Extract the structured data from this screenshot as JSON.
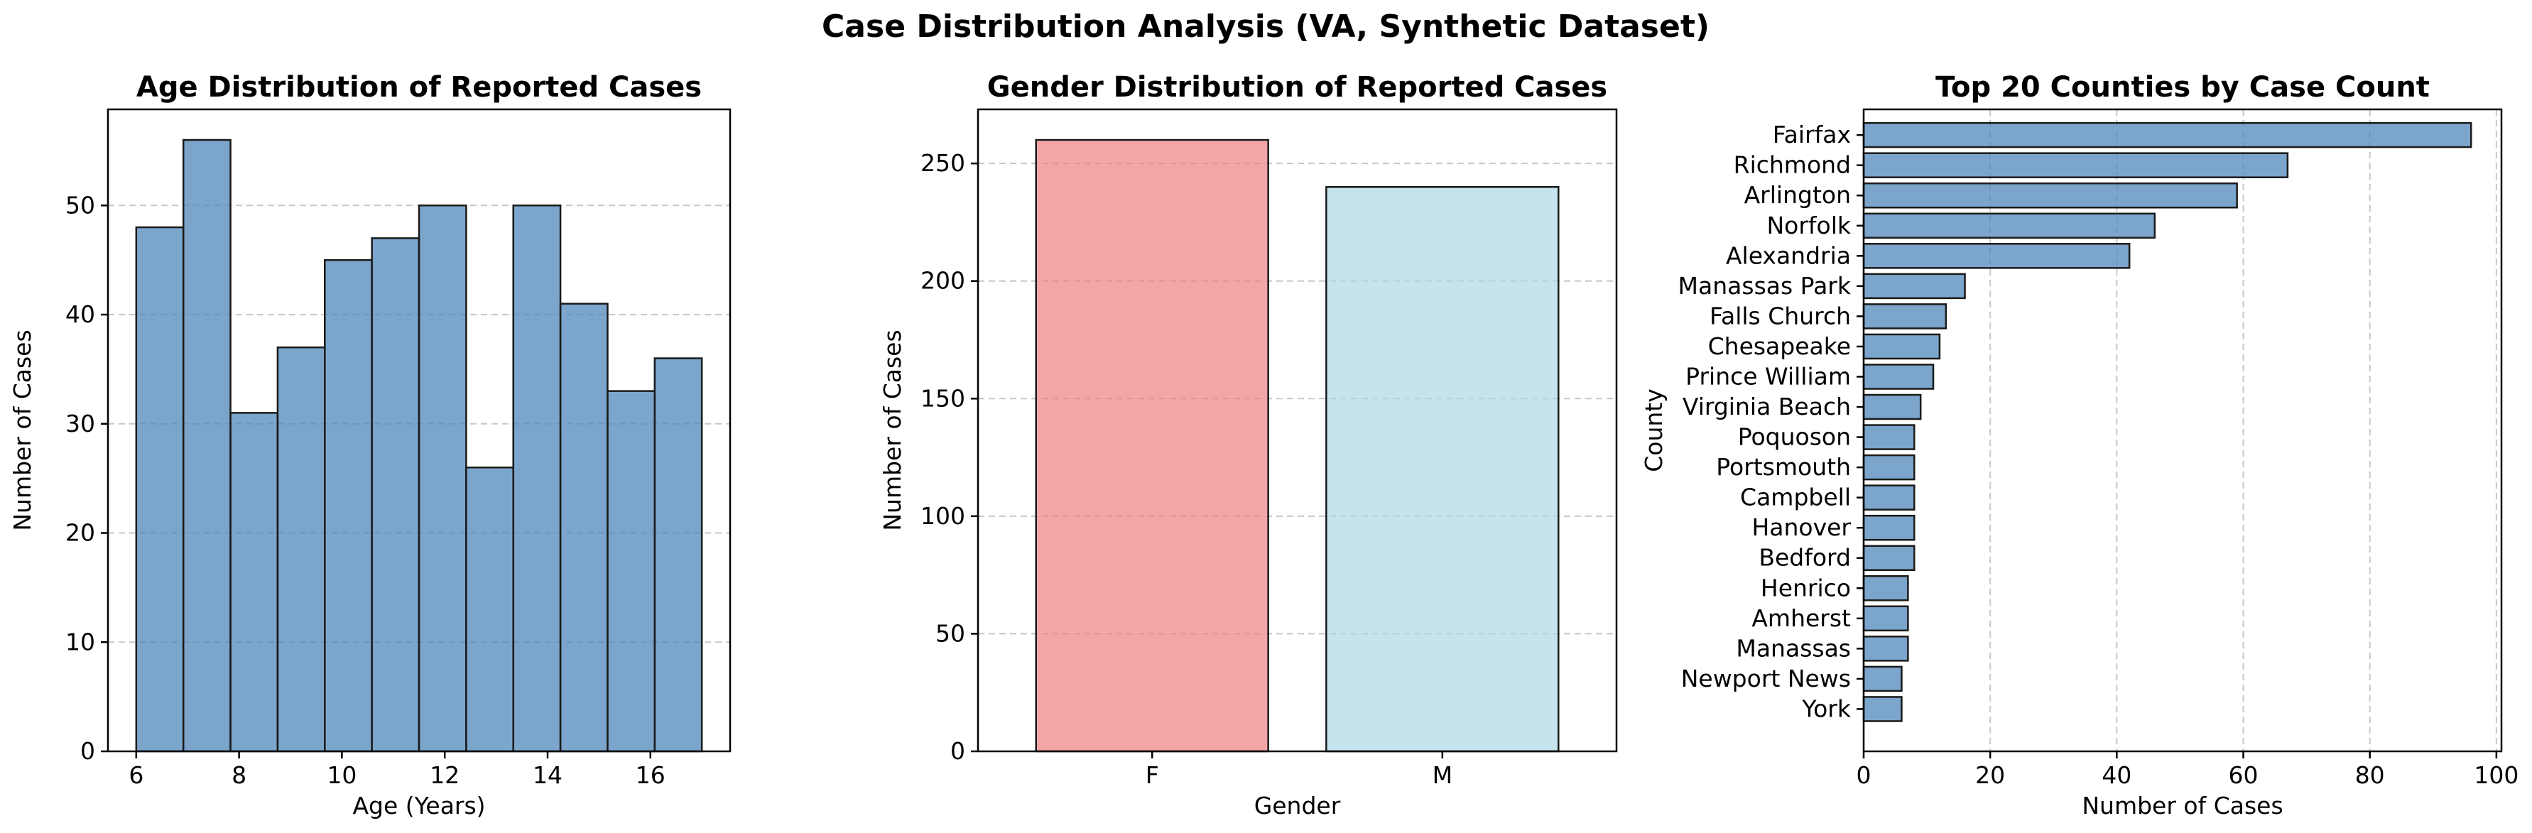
{
  "suptitle": "Case Distribution Analysis (VA, Synthetic Dataset)",
  "colors": {
    "steelblue": "#4f87b9",
    "female": "#f08080",
    "male": "#add8e6",
    "edge": "#1a1a1a"
  },
  "chart_data": [
    {
      "type": "bar",
      "subtype": "histogram",
      "title": "Age Distribution of Reported Cases",
      "xlabel": "Age (Years)",
      "ylabel": "Number of Cases",
      "bin_edges": [
        6,
        6.9167,
        7.8333,
        8.75,
        9.6667,
        10.5833,
        11.5,
        12.4167,
        13.3333,
        14.25,
        15.1667,
        16.0833,
        17
      ],
      "values": [
        48,
        56,
        31,
        37,
        45,
        47,
        50,
        26,
        50,
        41,
        33,
        36
      ],
      "xlim": [
        5.45,
        17.55
      ],
      "ylim": [
        0,
        58.8
      ],
      "xticks": [
        6,
        8,
        10,
        12,
        14,
        16
      ],
      "yticks": [
        0,
        10,
        20,
        30,
        40,
        50
      ],
      "grid": "y",
      "color": "steelblue"
    },
    {
      "type": "bar",
      "title": "Gender Distribution of Reported Cases",
      "xlabel": "Gender",
      "ylabel": "Number of Cases",
      "categories": [
        "F",
        "M"
      ],
      "values": [
        260,
        240
      ],
      "ylim": [
        0,
        273
      ],
      "yticks": [
        0,
        50,
        100,
        150,
        200,
        250
      ],
      "grid": "y",
      "colors": [
        "female",
        "male"
      ]
    },
    {
      "type": "bar",
      "orientation": "horizontal",
      "title": "Top 20 Counties by Case Count",
      "xlabel": "Number of Cases",
      "ylabel": "County",
      "categories": [
        "Fairfax",
        "Richmond",
        "Arlington",
        "Norfolk",
        "Alexandria",
        "Manassas Park",
        "Falls Church",
        "Chesapeake",
        "Prince William",
        "Virginia Beach",
        "Poquoson",
        "Portsmouth",
        "Campbell",
        "Hanover",
        "Bedford",
        "Henrico",
        "Amherst",
        "Manassas",
        "Newport News",
        "York"
      ],
      "values": [
        96,
        67,
        59,
        46,
        42,
        16,
        13,
        12,
        11,
        9,
        8,
        8,
        8,
        8,
        8,
        7,
        7,
        7,
        6,
        6
      ],
      "xlim": [
        0,
        100.8
      ],
      "xticks": [
        0,
        20,
        40,
        60,
        80,
        100
      ],
      "grid": "x",
      "color": "steelblue"
    }
  ]
}
